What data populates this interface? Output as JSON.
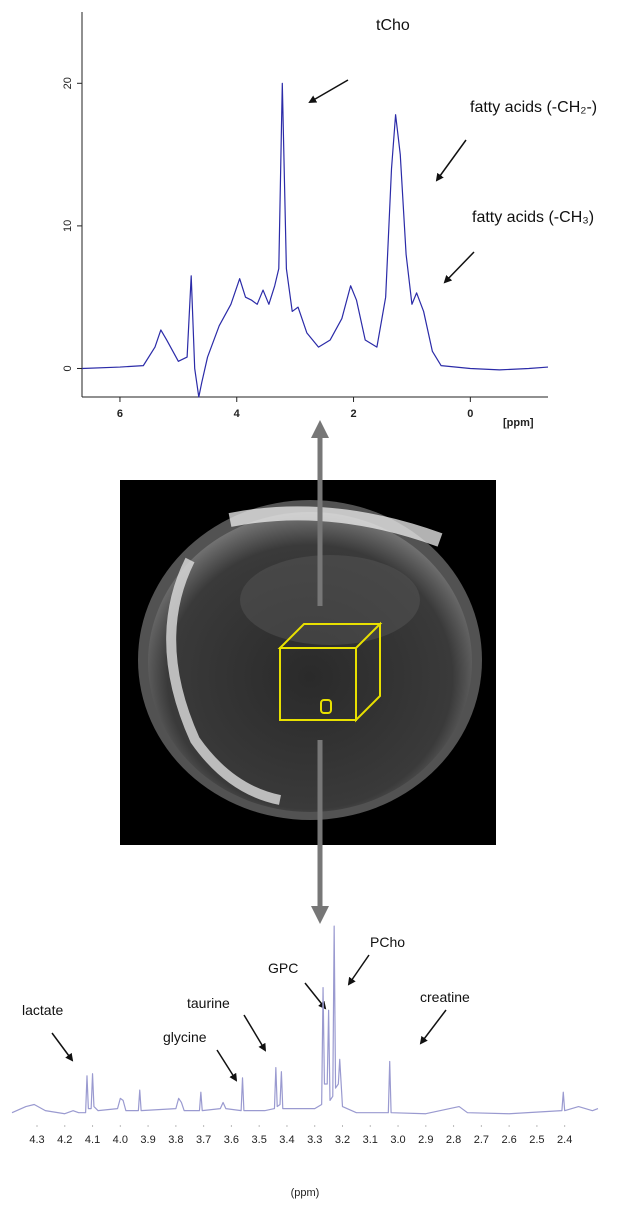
{
  "chart_data": [
    {
      "type": "line",
      "annotations": [
        "tCho",
        "fatty acids (-CH₂-)",
        "fatty acids (-CH₃)"
      ],
      "x_label": "[ppm]",
      "x": [
        6.65,
        6.0,
        5.6,
        5.4,
        5.3,
        5.2,
        5.0,
        4.85,
        4.78,
        4.72,
        4.65,
        4.6,
        4.5,
        4.3,
        4.1,
        3.95,
        3.85,
        3.75,
        3.65,
        3.55,
        3.45,
        3.35,
        3.28,
        3.22,
        3.15,
        3.05,
        2.95,
        2.8,
        2.6,
        2.4,
        2.2,
        2.05,
        1.95,
        1.8,
        1.6,
        1.45,
        1.35,
        1.28,
        1.2,
        1.1,
        1.0,
        0.92,
        0.8,
        0.65,
        0.5,
        0.0,
        -0.5,
        -1.0,
        -1.33
      ],
      "values": [
        0,
        0.1,
        0.2,
        1.5,
        2.7,
        2,
        0.5,
        0.8,
        6.5,
        0,
        -2,
        -1,
        0.8,
        3,
        4.5,
        6.3,
        5.0,
        4.8,
        4.5,
        5.5,
        4.5,
        5.8,
        7,
        20,
        7,
        4,
        4.3,
        2.5,
        1.5,
        2,
        3.5,
        5.8,
        4.8,
        2,
        1.5,
        5,
        14,
        17.8,
        15,
        8,
        4.5,
        5.3,
        4,
        1.2,
        0.2,
        0,
        -0.1,
        0,
        0.1
      ],
      "color": "#2b2ba8",
      "xlim": [
        6.65,
        -1.33
      ],
      "xticks": [
        6,
        4,
        2,
        0
      ],
      "ylim": [
        -2,
        25
      ],
      "yticks": [
        0,
        10,
        20
      ]
    },
    {
      "type": "line",
      "annotations": [
        "lactate",
        "glycine",
        "taurine",
        "GPC",
        "PCho",
        "creatine"
      ],
      "x_label": "(ppm)",
      "x": [
        4.39,
        4.34,
        4.31,
        4.27,
        4.2,
        4.17,
        4.15,
        4.125,
        4.12,
        4.115,
        4.105,
        4.1,
        4.095,
        4.08,
        4.01,
        4.0,
        3.99,
        3.98,
        3.935,
        3.93,
        3.925,
        3.8,
        3.79,
        3.78,
        3.77,
        3.715,
        3.71,
        3.705,
        3.64,
        3.63,
        3.62,
        3.565,
        3.56,
        3.555,
        3.48,
        3.445,
        3.44,
        3.435,
        3.425,
        3.42,
        3.415,
        3.3,
        3.275,
        3.27,
        3.265,
        3.255,
        3.25,
        3.245,
        3.235,
        3.23,
        3.225,
        3.215,
        3.21,
        3.2,
        3.15,
        3.035,
        3.03,
        3.025,
        2.9,
        2.78,
        2.75,
        2.6,
        2.41,
        2.405,
        2.4,
        2.35,
        2.3,
        2.28
      ],
      "values": [
        6,
        9,
        10,
        7,
        5.5,
        7,
        6,
        6,
        24,
        8,
        8,
        25,
        9,
        7,
        8,
        13,
        12,
        7,
        7,
        17,
        7,
        8,
        13,
        11,
        7,
        7,
        16,
        7,
        8,
        11,
        8,
        7,
        23,
        7,
        7,
        8,
        28,
        9,
        10,
        26,
        8,
        8,
        10,
        67,
        20,
        20,
        56,
        12,
        14,
        97,
        18,
        20,
        32,
        9,
        6,
        6,
        31,
        6,
        5.5,
        9,
        6,
        5.5,
        7,
        16,
        7,
        9,
        7,
        8
      ],
      "color": "#9a9ad0",
      "xlim": [
        4.39,
        2.28
      ],
      "xticks": [
        4.3,
        4.2,
        4.1,
        {
          "value": 4,
          "label": "4.0"
        },
        3.9,
        3.8,
        3.7,
        3.6,
        3.5,
        3.4,
        3.3,
        3.2,
        3.1,
        {
          "value": 3,
          "label": "3.0"
        },
        2.9,
        2.8,
        2.7,
        2.6,
        2.5,
        2.4
      ],
      "ylim": [
        0,
        100
      ]
    }
  ]
}
